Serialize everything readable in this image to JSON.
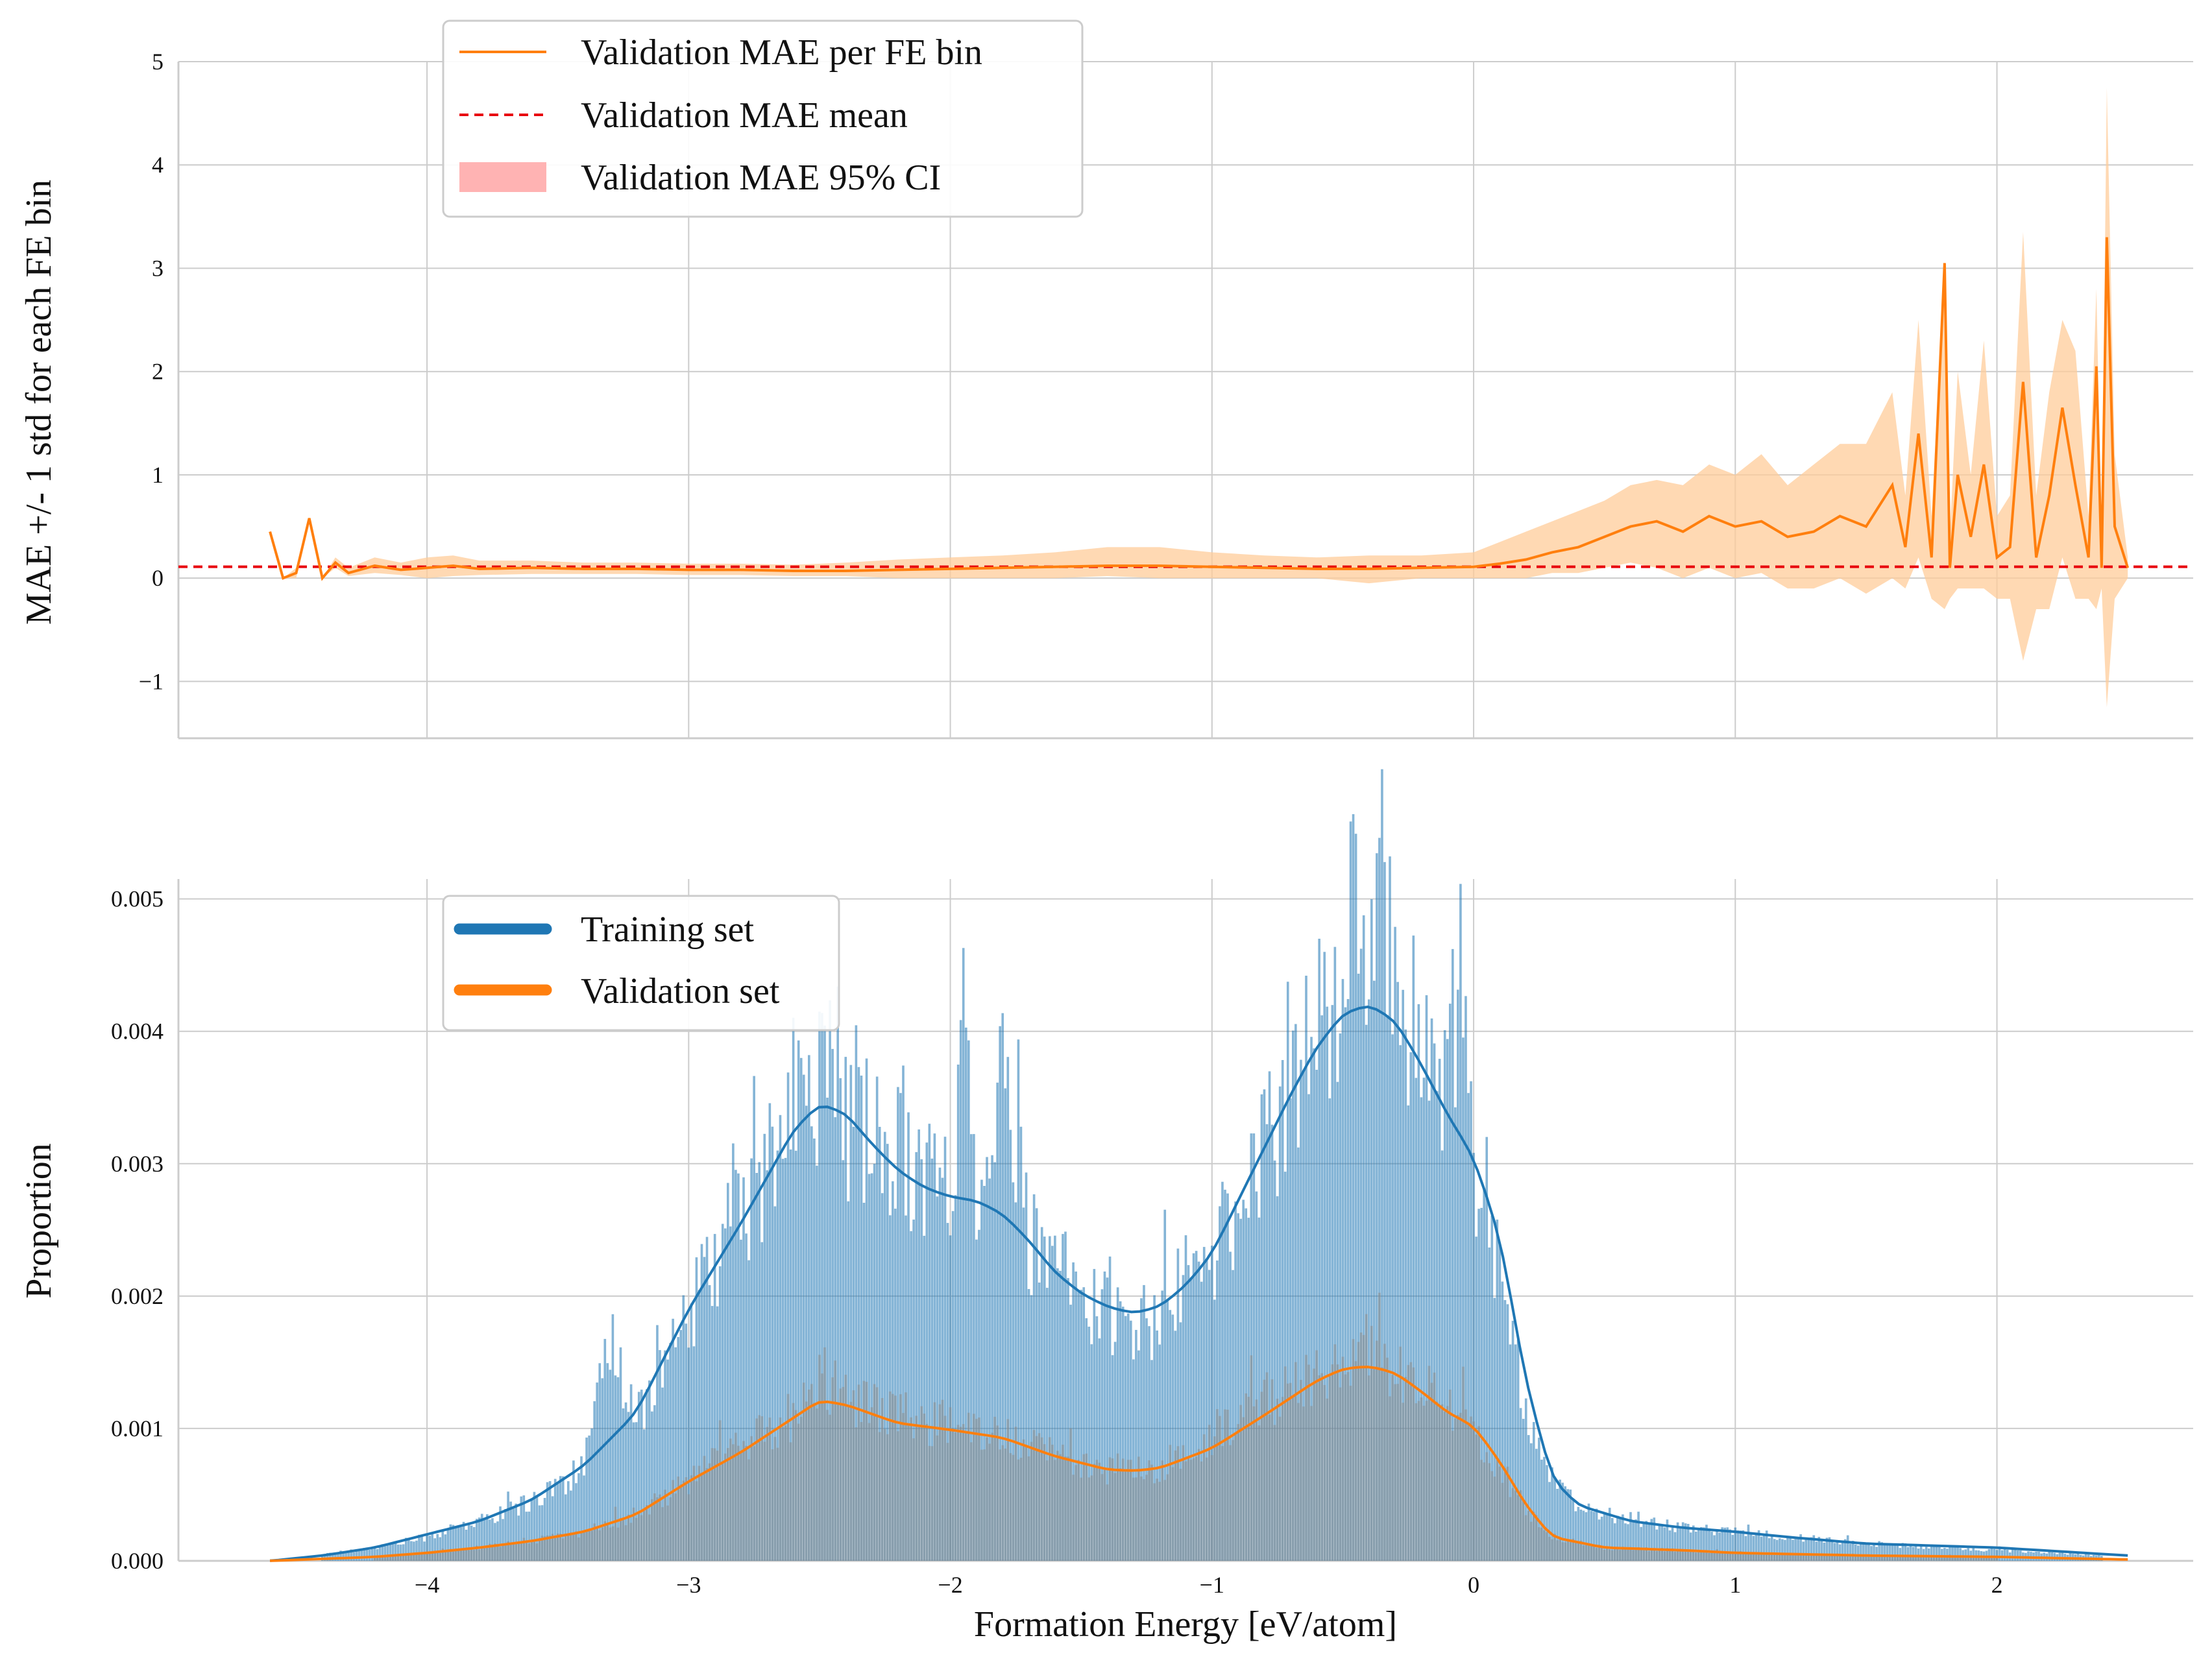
{
  "chart_data": [
    {
      "id": "mae",
      "type": "line",
      "xlabel": "",
      "ylabel": "MAE +/- 1 std for each FE bin",
      "xlim": [
        -4.95,
        2.75
      ],
      "ylim": [
        -1.55,
        5.0
      ],
      "xticks": [
        -4,
        -3,
        -2,
        -1,
        0,
        1,
        2
      ],
      "yticks": [
        -1,
        0,
        1,
        2,
        3,
        4,
        5
      ],
      "grid": true,
      "legend_position": "top-left",
      "legend": [
        {
          "label": "Validation MAE per FE bin",
          "kind": "line",
          "color": "#ff7f0e"
        },
        {
          "label": "Validation MAE mean",
          "kind": "dashed",
          "color": "#e8000b"
        },
        {
          "label": "Validation MAE 95% CI",
          "kind": "patch",
          "color": "#ffb3b3"
        }
      ],
      "mean_line": 0.11,
      "series": [
        {
          "name": "Validation MAE per FE bin",
          "x": [
            -4.6,
            -4.55,
            -4.5,
            -4.45,
            -4.4,
            -4.35,
            -4.3,
            -4.2,
            -4.1,
            -4.0,
            -3.9,
            -3.8,
            -3.6,
            -3.4,
            -3.2,
            -3.0,
            -2.8,
            -2.6,
            -2.4,
            -2.2,
            -2.0,
            -1.8,
            -1.6,
            -1.4,
            -1.2,
            -1.0,
            -0.8,
            -0.6,
            -0.4,
            -0.2,
            0.0,
            0.1,
            0.2,
            0.3,
            0.4,
            0.5,
            0.6,
            0.7,
            0.8,
            0.9,
            1.0,
            1.1,
            1.2,
            1.3,
            1.4,
            1.5,
            1.6,
            1.65,
            1.7,
            1.75,
            1.8,
            1.82,
            1.85,
            1.9,
            1.95,
            2.0,
            2.05,
            2.1,
            2.15,
            2.2,
            2.25,
            2.3,
            2.35,
            2.38,
            2.4,
            2.42,
            2.45,
            2.5
          ],
          "y": [
            0.45,
            0.0,
            0.05,
            0.58,
            0.0,
            0.15,
            0.05,
            0.12,
            0.08,
            0.1,
            0.12,
            0.09,
            0.1,
            0.09,
            0.09,
            0.08,
            0.08,
            0.07,
            0.07,
            0.08,
            0.09,
            0.1,
            0.11,
            0.12,
            0.12,
            0.11,
            0.1,
            0.09,
            0.09,
            0.1,
            0.11,
            0.14,
            0.18,
            0.25,
            0.3,
            0.4,
            0.5,
            0.55,
            0.45,
            0.6,
            0.5,
            0.55,
            0.4,
            0.45,
            0.6,
            0.5,
            0.9,
            0.3,
            1.4,
            0.2,
            3.05,
            0.1,
            1.0,
            0.4,
            1.1,
            0.2,
            0.3,
            1.9,
            0.2,
            0.8,
            1.65,
            0.9,
            0.2,
            2.05,
            0.1,
            3.3,
            0.5,
            0.1
          ],
          "ci_low": [
            0.45,
            0.0,
            0.0,
            0.58,
            0.0,
            0.1,
            0.02,
            0.05,
            0.03,
            0.0,
            0.02,
            0.03,
            0.04,
            0.04,
            0.04,
            0.03,
            0.03,
            0.02,
            0.02,
            0.0,
            0.0,
            0.0,
            0.0,
            0.02,
            0.0,
            0.0,
            0.0,
            0.0,
            -0.05,
            0.0,
            0.0,
            0.0,
            0.0,
            0.05,
            0.05,
            0.1,
            0.15,
            0.1,
            0.0,
            0.1,
            0.0,
            0.05,
            -0.1,
            -0.1,
            0.0,
            -0.15,
            0.0,
            -0.1,
            0.2,
            -0.2,
            -0.3,
            -0.2,
            -0.1,
            -0.1,
            -0.1,
            -0.2,
            -0.2,
            -0.8,
            -0.3,
            -0.3,
            0.2,
            -0.2,
            -0.2,
            -0.3,
            -0.1,
            -1.25,
            -0.2,
            0.0
          ],
          "ci_high": [
            0.45,
            0.0,
            0.1,
            0.58,
            0.0,
            0.2,
            0.1,
            0.2,
            0.15,
            0.2,
            0.22,
            0.17,
            0.17,
            0.15,
            0.15,
            0.14,
            0.14,
            0.13,
            0.15,
            0.18,
            0.2,
            0.22,
            0.25,
            0.3,
            0.3,
            0.25,
            0.22,
            0.2,
            0.22,
            0.22,
            0.25,
            0.35,
            0.45,
            0.55,
            0.65,
            0.75,
            0.9,
            0.95,
            0.9,
            1.1,
            1.0,
            1.2,
            0.9,
            1.1,
            1.3,
            1.3,
            1.8,
            0.8,
            2.5,
            0.6,
            3.05,
            0.4,
            2.0,
            1.0,
            2.3,
            0.6,
            0.8,
            3.35,
            0.8,
            1.8,
            2.5,
            2.2,
            0.6,
            2.8,
            0.4,
            4.75,
            1.2,
            0.2
          ]
        }
      ]
    },
    {
      "id": "hist",
      "type": "bar",
      "xlabel": "Formation Energy [eV/atom]",
      "ylabel": "Proportion",
      "xlim": [
        -4.95,
        2.75
      ],
      "ylim": [
        0.0,
        0.00515
      ],
      "xticks": [
        -4,
        -3,
        -2,
        -1,
        0,
        1,
        2
      ],
      "yticks": [
        0.0,
        0.001,
        0.002,
        0.003,
        0.004,
        0.005
      ],
      "ytick_labels": [
        "0.000",
        "0.001",
        "0.002",
        "0.003",
        "0.004",
        "0.005"
      ],
      "xtick_labels": [
        "−4",
        "−3",
        "−2",
        "−1",
        "0",
        "1",
        "2"
      ],
      "mae_ytick_labels": [
        "−1",
        "0",
        "1",
        "2",
        "3",
        "4",
        "5"
      ],
      "grid": true,
      "legend_position": "top-left",
      "legend": [
        {
          "label": "Training set",
          "color": "#1f77b4"
        },
        {
          "label": "Validation set",
          "color": "#ff7f0e"
        }
      ],
      "bin_width": 0.01,
      "series": [
        {
          "name": "Training set",
          "color": "#1f77b4",
          "kde": {
            "x": [
              -4.6,
              -4.4,
              -4.2,
              -4.0,
              -3.8,
              -3.6,
              -3.4,
              -3.2,
              -3.0,
              -2.8,
              -2.6,
              -2.5,
              -2.4,
              -2.3,
              -2.2,
              -2.1,
              -2.0,
              -1.9,
              -1.8,
              -1.7,
              -1.6,
              -1.5,
              -1.4,
              -1.3,
              -1.2,
              -1.1,
              -1.0,
              -0.9,
              -0.8,
              -0.7,
              -0.6,
              -0.5,
              -0.4,
              -0.3,
              -0.2,
              -0.1,
              0.0,
              0.1,
              0.2,
              0.3,
              0.4,
              0.6,
              0.8,
              1.0,
              1.2,
              1.5,
              2.0,
              2.5
            ],
            "y": [
              0.0,
              4e-05,
              0.0001,
              0.0002,
              0.0003,
              0.00046,
              0.00072,
              0.00112,
              0.0019,
              0.00255,
              0.00325,
              0.00345,
              0.00338,
              0.00315,
              0.00295,
              0.00282,
              0.00275,
              0.00272,
              0.00262,
              0.00242,
              0.00218,
              0.00202,
              0.00192,
              0.00187,
              0.00192,
              0.00208,
              0.00232,
              0.00272,
              0.00312,
              0.00352,
              0.00388,
              0.00413,
              0.0042,
              0.00408,
              0.00375,
              0.00337,
              0.00305,
              0.00245,
              0.00135,
              0.00062,
              0.00042,
              0.0003,
              0.00025,
              0.00022,
              0.00018,
              0.00013,
              0.0001,
              4e-05
            ]
          },
          "bins": {
            "x": [
              -4.4,
              -4.2,
              -4.0,
              -3.8,
              -3.6,
              -3.4,
              -3.3,
              -3.2,
              -3.0,
              -2.9,
              -2.8,
              -2.7,
              -2.6,
              -2.5,
              -2.45,
              -2.4,
              -2.3,
              -2.2,
              -2.1,
              -2.0,
              -1.95,
              -1.9,
              -1.8,
              -1.7,
              -1.6,
              -1.5,
              -1.4,
              -1.3,
              -1.2,
              -1.1,
              -1.0,
              -0.9,
              -0.8,
              -0.7,
              -0.6,
              -0.5,
              -0.45,
              -0.4,
              -0.35,
              -0.3,
              -0.2,
              -0.1,
              -0.05,
              0.0,
              0.1,
              0.15,
              0.2,
              0.3,
              0.4,
              0.6,
              0.8,
              1.0,
              1.2,
              1.4,
              1.6,
              1.8,
              2.0,
              2.2,
              2.4
            ],
            "y": [
              5e-05,
              0.0001,
              0.00018,
              0.0003,
              0.00045,
              0.0007,
              0.00165,
              0.0011,
              0.0018,
              0.0023,
              0.0026,
              0.0029,
              0.0035,
              0.0036,
              0.004,
              0.0033,
              0.0032,
              0.0031,
              0.0029,
              0.0028,
              0.0041,
              0.0029,
              0.0037,
              0.0024,
              0.0022,
              0.002,
              0.0019,
              0.0017,
              0.0019,
              0.0021,
              0.0023,
              0.0027,
              0.0031,
              0.0036,
              0.004,
              0.0045,
              0.0049,
              0.0042,
              0.0049,
              0.0044,
              0.0039,
              0.0036,
              0.0045,
              0.0029,
              0.0022,
              0.0016,
              0.0012,
              0.0006,
              0.0004,
              0.0003,
              0.00025,
              0.00022,
              0.00018,
              0.00015,
              0.00012,
              0.0001,
              8e-05,
              6e-05,
              4e-05
            ]
          }
        },
        {
          "name": "Validation set",
          "color": "#ff7f0e",
          "kde": {
            "x": [
              -4.6,
              -4.2,
              -4.0,
              -3.8,
              -3.6,
              -3.4,
              -3.2,
              -3.0,
              -2.8,
              -2.6,
              -2.5,
              -2.4,
              -2.2,
              -2.0,
              -1.8,
              -1.6,
              -1.4,
              -1.3,
              -1.2,
              -1.0,
              -0.8,
              -0.6,
              -0.5,
              -0.4,
              -0.3,
              -0.2,
              -0.1,
              0.0,
              0.1,
              0.2,
              0.3,
              0.5,
              0.8,
              1.0,
              1.5,
              2.0,
              2.5
            ],
            "y": [
              0.0,
              3e-05,
              6e-05,
              0.0001,
              0.00015,
              0.00022,
              0.00035,
              0.0006,
              0.00082,
              0.00108,
              0.00121,
              0.00118,
              0.00104,
              0.00099,
              0.00093,
              0.00079,
              0.00069,
              0.00068,
              0.0007,
              0.00085,
              0.0011,
              0.00136,
              0.00145,
              0.00147,
              0.00142,
              0.00128,
              0.00112,
              0.00102,
              0.00075,
              0.00042,
              0.00018,
              0.0001,
              8e-05,
              6e-05,
              4e-05,
              3e-05,
              1e-05
            ]
          },
          "bins": {
            "x": [
              -4.2,
              -4.0,
              -3.8,
              -3.6,
              -3.4,
              -3.2,
              -3.0,
              -2.8,
              -2.6,
              -2.5,
              -2.4,
              -2.2,
              -2.0,
              -1.8,
              -1.6,
              -1.4,
              -1.3,
              -1.2,
              -1.0,
              -0.8,
              -0.6,
              -0.5,
              -0.4,
              -0.3,
              -0.2,
              -0.1,
              0.0,
              0.1,
              0.2,
              0.3,
              0.5,
              0.8,
              1.0,
              1.5,
              2.0
            ],
            "y": [
              3e-05,
              6e-05,
              0.0001,
              0.00015,
              0.00022,
              0.00035,
              0.0006,
              0.0009,
              0.0011,
              0.00142,
              0.0012,
              0.0011,
              0.001,
              0.00095,
              0.0008,
              0.0007,
              0.00069,
              0.00072,
              0.0009,
              0.0012,
              0.0014,
              0.00155,
              0.00152,
              0.00145,
              0.0013,
              0.00115,
              0.001,
              0.0007,
              0.0004,
              0.00018,
              0.0001,
              8e-05,
              6e-05,
              4e-05,
              3e-05
            ]
          }
        }
      ]
    }
  ]
}
